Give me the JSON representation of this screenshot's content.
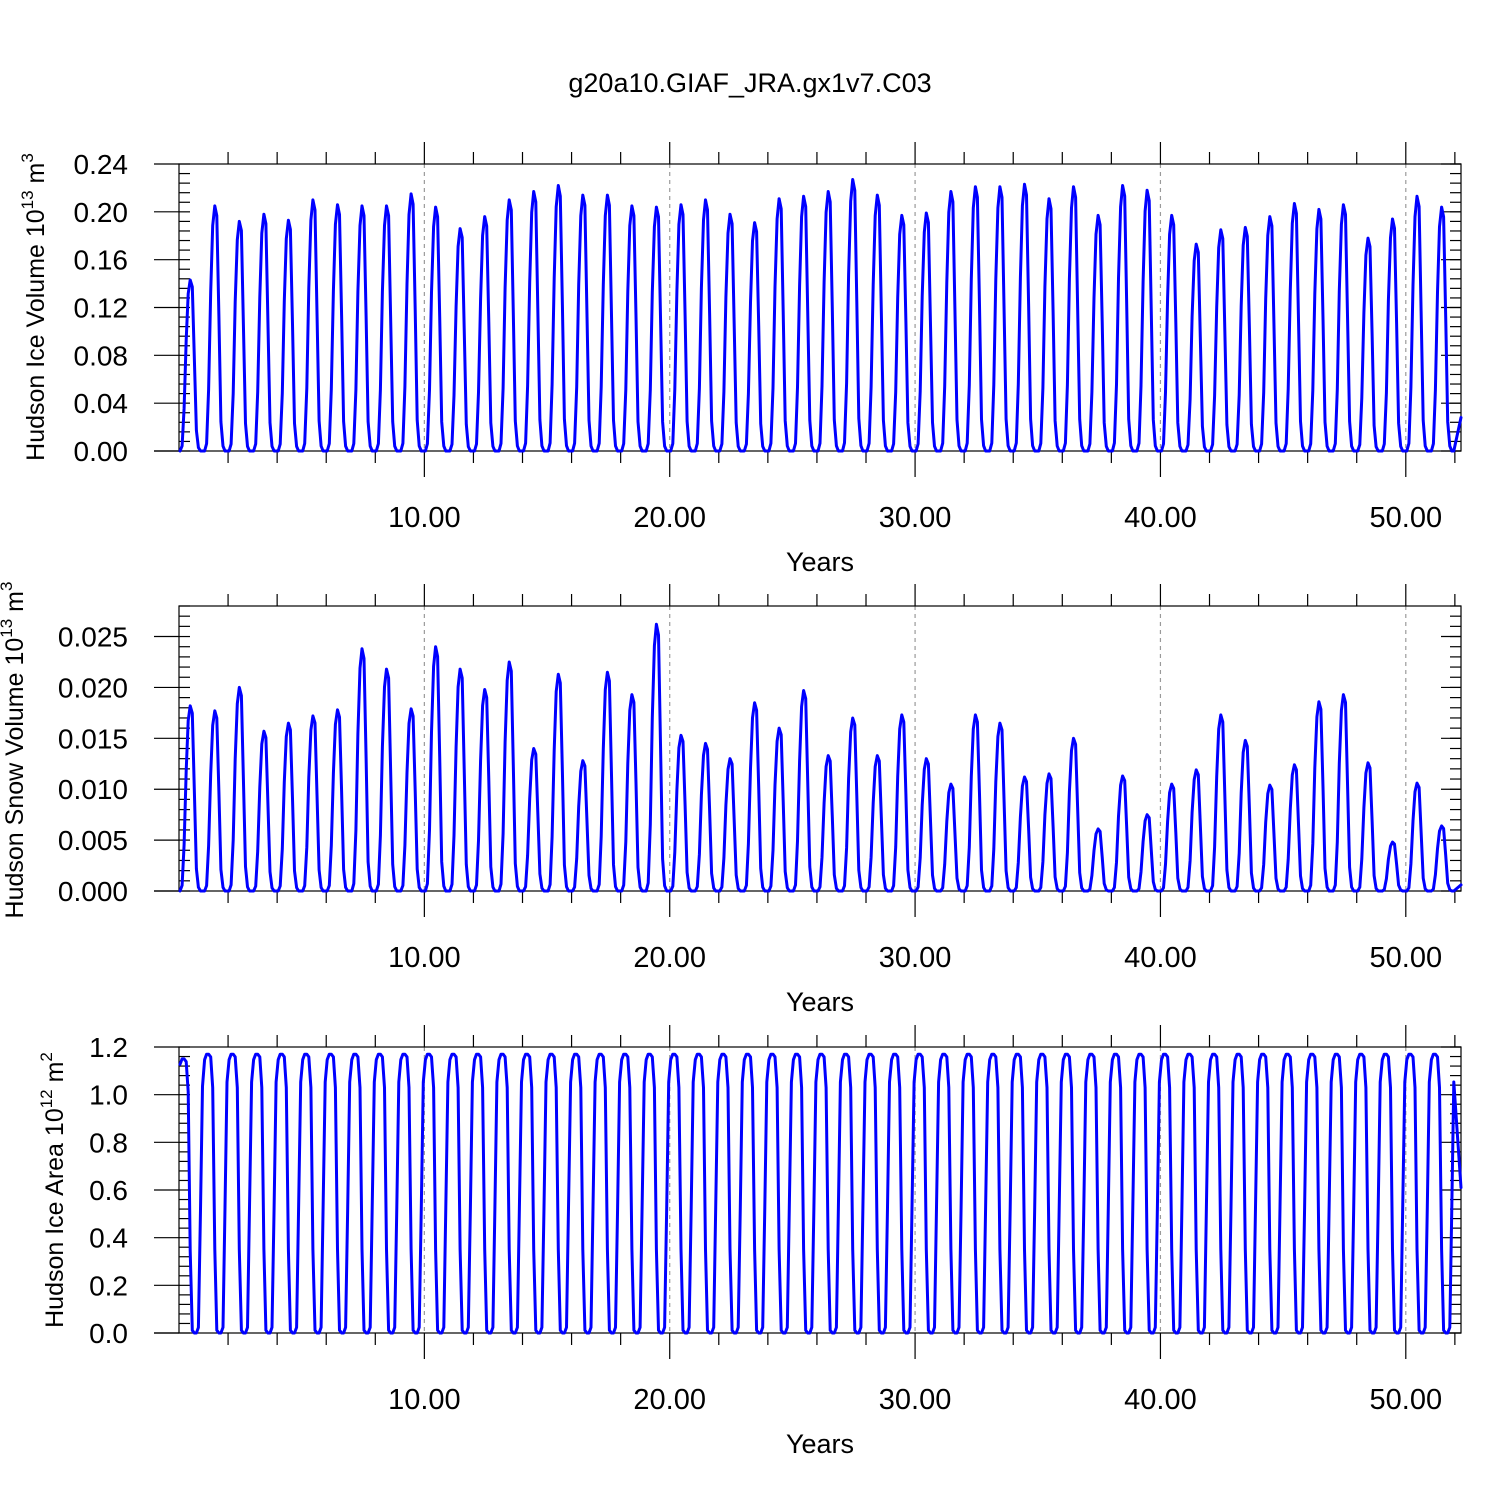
{
  "title": "g20a10.GIAF_JRA.gx1v7.C03",
  "colors": {
    "series": "#0000ff",
    "axes": "#000000",
    "grid": "#9a9a9a"
  },
  "chart_data": [
    {
      "type": "line",
      "panel": "top",
      "title": "",
      "xlabel": "Years",
      "ylabel_base": "Hudson Ice Volume 10",
      "ylabel_exp": "13",
      "ylabel_unit": " m",
      "ylabel_unit_exp": "3",
      "xlim": [
        0,
        52.25
      ],
      "ylim": [
        0,
        0.24
      ],
      "yticks": [
        0.0,
        0.04,
        0.08,
        0.12,
        0.16,
        0.2,
        0.24
      ],
      "ytick_labels": [
        "0.00",
        "0.04",
        "0.08",
        "0.12",
        "0.16",
        "0.20",
        "0.24"
      ],
      "xticks": [
        10,
        20,
        30,
        40,
        50
      ],
      "xtick_labels": [
        "10.00",
        "20.00",
        "30.00",
        "40.00",
        "50.00"
      ],
      "grid": "vertical dashed at major x ticks",
      "series": [
        {
          "shape": "annual cycle, monthly values",
          "annual_peaks": [
            0.143,
            0.205,
            0.192,
            0.198,
            0.193,
            0.21,
            0.206,
            0.205,
            0.205,
            0.215,
            0.204,
            0.186,
            0.196,
            0.21,
            0.217,
            0.222,
            0.214,
            0.214,
            0.205,
            0.204,
            0.206,
            0.21,
            0.198,
            0.191,
            0.211,
            0.213,
            0.217,
            0.227,
            0.214,
            0.197,
            0.199,
            0.217,
            0.221,
            0.221,
            0.223,
            0.211,
            0.221,
            0.197,
            0.222,
            0.218,
            0.197,
            0.173,
            0.185,
            0.187,
            0.196,
            0.207,
            0.202,
            0.206,
            0.178,
            0.194,
            0.213,
            0.204
          ],
          "last_value": 0.028
        }
      ]
    },
    {
      "type": "line",
      "panel": "middle",
      "title": "",
      "xlabel": "Years",
      "ylabel_base": "Hudson Snow Volume 10",
      "ylabel_exp": "13",
      "ylabel_unit": " m",
      "ylabel_unit_exp": "3",
      "xlim": [
        0,
        52.25
      ],
      "ylim": [
        0,
        0.028
      ],
      "yticks": [
        0.0,
        0.005,
        0.01,
        0.015,
        0.02,
        0.025
      ],
      "ytick_labels": [
        "0.000",
        "0.005",
        "0.010",
        "0.015",
        "0.020",
        "0.025"
      ],
      "xticks": [
        10,
        20,
        30,
        40,
        50
      ],
      "xtick_labels": [
        "10.00",
        "20.00",
        "30.00",
        "40.00",
        "50.00"
      ],
      "grid": "vertical dashed at major x ticks",
      "series": [
        {
          "shape": "annual cycle, monthly values",
          "annual_peaks": [
            0.0182,
            0.0177,
            0.02,
            0.0157,
            0.0165,
            0.0172,
            0.0178,
            0.0238,
            0.0218,
            0.0179,
            0.024,
            0.0218,
            0.0198,
            0.0225,
            0.014,
            0.0213,
            0.0128,
            0.0215,
            0.0193,
            0.0262,
            0.0153,
            0.0145,
            0.013,
            0.0185,
            0.016,
            0.0197,
            0.0133,
            0.017,
            0.0133,
            0.0173,
            0.013,
            0.0105,
            0.0173,
            0.0165,
            0.0112,
            0.0115,
            0.015,
            0.0061,
            0.0113,
            0.0075,
            0.0105,
            0.0119,
            0.0173,
            0.0148,
            0.0104,
            0.0124,
            0.0186,
            0.0193,
            0.0126,
            0.0048,
            0.0106,
            0.0064
          ],
          "last_value": 0.0006
        }
      ]
    },
    {
      "type": "line",
      "panel": "bottom",
      "title": "",
      "xlabel": "Years",
      "ylabel_base": "Hudson Ice Area 10",
      "ylabel_exp": "12",
      "ylabel_unit": " m",
      "ylabel_unit_exp": "2",
      "xlim": [
        0,
        52.25
      ],
      "ylim": [
        0,
        1.2
      ],
      "yticks": [
        0.0,
        0.2,
        0.4,
        0.6,
        0.8,
        1.0,
        1.2
      ],
      "ytick_labels": [
        "0.0",
        "0.2",
        "0.4",
        "0.6",
        "0.8",
        "1.0",
        "1.2"
      ],
      "xticks": [
        10,
        20,
        30,
        40,
        50
      ],
      "xtick_labels": [
        "10.00",
        "20.00",
        "30.00",
        "40.00",
        "50.00"
      ],
      "grid": "vertical dashed at major x ticks",
      "series": [
        {
          "shape": "annual cycle, monthly values",
          "annual_peaks": [
            1.15,
            1.17,
            1.17,
            1.17,
            1.17,
            1.17,
            1.17,
            1.17,
            1.17,
            1.17,
            1.17,
            1.17,
            1.17,
            1.17,
            1.17,
            1.17,
            1.17,
            1.17,
            1.17,
            1.17,
            1.17,
            1.17,
            1.17,
            1.17,
            1.17,
            1.17,
            1.17,
            1.17,
            1.17,
            1.17,
            1.17,
            1.17,
            1.17,
            1.17,
            1.17,
            1.17,
            1.17,
            1.17,
            1.17,
            1.17,
            1.17,
            1.17,
            1.17,
            1.17,
            1.17,
            1.17,
            1.17,
            1.17,
            1.17,
            1.17,
            1.17,
            1.17
          ],
          "last_value": 0.61
        }
      ]
    }
  ]
}
